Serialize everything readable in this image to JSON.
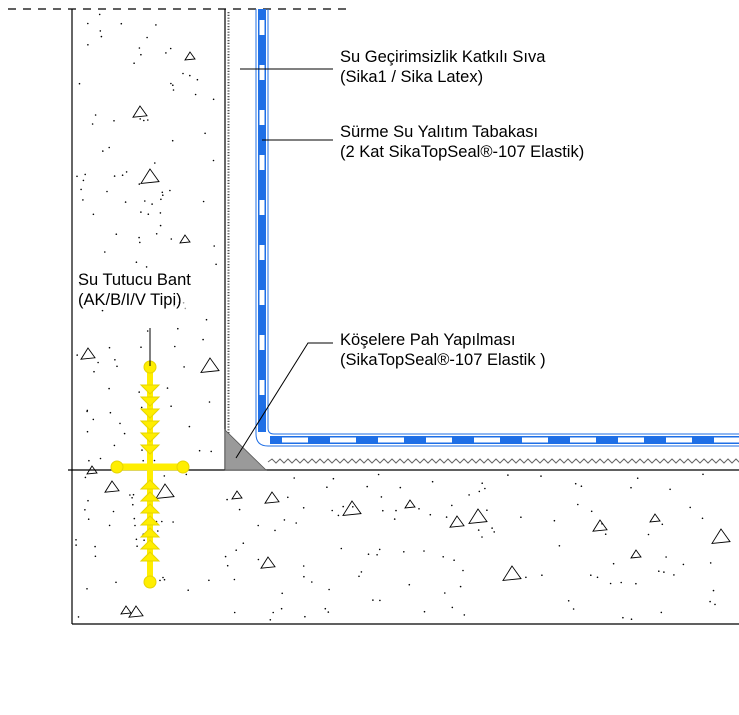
{
  "colors": {
    "line": "#000000",
    "membrane": "#1f6fe6",
    "membrane_gap": "#ffffff",
    "waterstop": "#ffee00",
    "fillet": "#9a9a9a",
    "background": "#ffffff"
  },
  "labels": {
    "render": {
      "title": "Su Geçirimsizlik Katkılı Sıva",
      "sub": "(Sika1 / Sika Latex)"
    },
    "coating": {
      "title": "Sürme Su Yalıtım Tabakası",
      "sub": "(2 Kat SikaTopSeal®-107 Elastik)"
    },
    "waterstop": {
      "title": "Su Tutucu Bant",
      "sub": "(AK/B/I/V Tipi)"
    },
    "fillet": {
      "title": "Köşelere Pah Yapılması",
      "sub": "(SikaTopSeal®-107 Elastik )"
    }
  }
}
